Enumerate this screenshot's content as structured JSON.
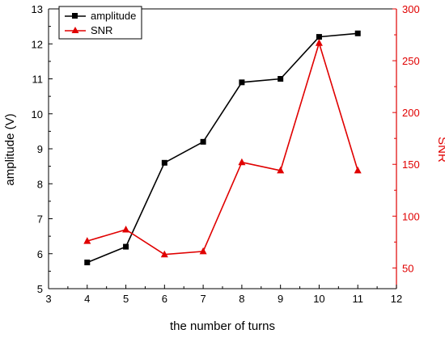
{
  "chart_data": {
    "type": "line",
    "xlabel": "the number of turns",
    "ylabel_left": "amplitude (V)",
    "ylabel_right": "SNR",
    "xlim": [
      3,
      12
    ],
    "x_ticks": [
      "3",
      "4",
      "5",
      "6",
      "7",
      "8",
      "9",
      "10",
      "11",
      "12"
    ],
    "ylim_left": [
      5,
      13
    ],
    "y_ticks_left": [
      "5",
      "6",
      "7",
      "8",
      "9",
      "10",
      "11",
      "12",
      "13"
    ],
    "ylim_right": [
      30,
      300
    ],
    "y_ticks_right": [
      "50",
      "100",
      "150",
      "200",
      "250",
      "300"
    ],
    "grid": false,
    "legend_position": "top-left",
    "series": [
      {
        "name": "amplitude",
        "axis": "left",
        "color": "#000000",
        "marker": "square",
        "x": [
          4,
          5,
          6,
          7,
          8,
          9,
          10,
          11
        ],
        "y": [
          5.75,
          6.2,
          8.6,
          9.2,
          10.9,
          11.0,
          12.2,
          12.3
        ]
      },
      {
        "name": "SNR",
        "axis": "right",
        "color": "#e00000",
        "marker": "triangle",
        "x": [
          4,
          5,
          6,
          7,
          8,
          9,
          10,
          11
        ],
        "y": [
          76,
          87,
          63,
          66,
          152,
          144,
          267,
          144
        ]
      }
    ]
  }
}
